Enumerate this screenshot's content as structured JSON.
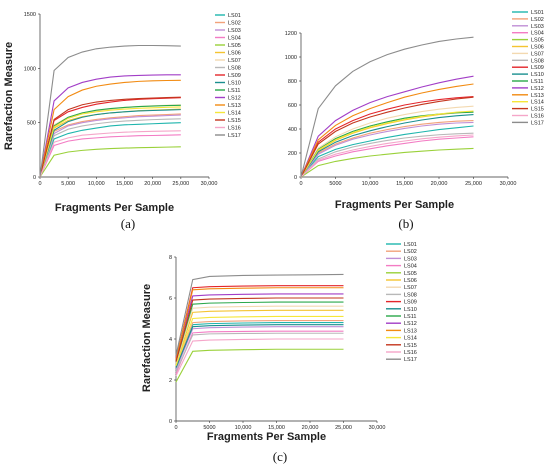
{
  "series_colors": {
    "LS01": "#1fb5ad",
    "LS02": "#f2a27a",
    "LS03": "#c08fd6",
    "LS04": "#f37cc4",
    "LS05": "#9ad13a",
    "LS06": "#f4c431",
    "LS07": "#f3d9b0",
    "LS08": "#b8b8b8",
    "LS09": "#e3262b",
    "LS10": "#1a8f8f",
    "LS11": "#2aa84a",
    "LS12": "#a23ec7",
    "LS13": "#f28b12",
    "LS14": "#f5e63a",
    "LS15": "#c4361e",
    "LS16": "#f5a6c9",
    "LS17": "#8c8c8c"
  },
  "chart_data": [
    {
      "id": "a",
      "type": "line",
      "panel_label": "(a)",
      "xlabel": "Fragments Per Sample",
      "ylabel": "Rarefaction Measure",
      "xlim": [
        0,
        30000
      ],
      "ylim": [
        0,
        1500
      ],
      "x_ticks": [
        0,
        5000,
        10000,
        15000,
        20000,
        25000,
        30000
      ],
      "x_tick_labels": [
        "0",
        "5,000",
        "10,000",
        "15,000",
        "20,000",
        "25,000",
        "30,000"
      ],
      "y_ticks": [
        0,
        500,
        1000,
        1500
      ],
      "y_tick_labels": [
        "0",
        "500",
        "1000",
        "1500"
      ],
      "legend": [
        "LS01",
        "LS02",
        "LS03",
        "LS04",
        "LS05",
        "LS06",
        "LS07",
        "LS08",
        "LS09",
        "LS10",
        "LS11",
        "LS12",
        "LS13",
        "LS14",
        "LS15",
        "LS16",
        "LS17"
      ],
      "x": [
        0,
        2500,
        5000,
        7500,
        10000,
        12500,
        15000,
        17500,
        20000,
        22500,
        25000
      ],
      "series": [
        {
          "name": "LS01",
          "values": [
            0,
            350,
            400,
            430,
            450,
            470,
            480,
            485,
            490,
            495,
            500
          ]
        },
        {
          "name": "LS02",
          "values": [
            0,
            420,
            480,
            510,
            530,
            545,
            555,
            565,
            570,
            575,
            580
          ]
        },
        {
          "name": "LS03",
          "values": [
            0,
            400,
            470,
            500,
            520,
            535,
            545,
            555,
            560,
            565,
            570
          ]
        },
        {
          "name": "LS04",
          "values": [
            0,
            290,
            330,
            350,
            360,
            370,
            375,
            380,
            382,
            385,
            388
          ]
        },
        {
          "name": "LS05",
          "values": [
            0,
            200,
            230,
            245,
            255,
            262,
            266,
            270,
            272,
            275,
            278
          ]
        },
        {
          "name": "LS06",
          "values": [
            0,
            450,
            520,
            555,
            575,
            590,
            600,
            610,
            615,
            620,
            625
          ]
        },
        {
          "name": "LS07",
          "values": [
            0,
            480,
            550,
            590,
            610,
            625,
            640,
            648,
            655,
            660,
            665
          ]
        },
        {
          "name": "LS08",
          "values": [
            0,
            380,
            440,
            470,
            490,
            505,
            515,
            522,
            528,
            532,
            535
          ]
        },
        {
          "name": "LS09",
          "values": [
            0,
            520,
            600,
            640,
            670,
            690,
            705,
            715,
            720,
            725,
            730
          ]
        },
        {
          "name": "LS10",
          "values": [
            0,
            430,
            510,
            550,
            575,
            590,
            600,
            608,
            612,
            616,
            620
          ]
        },
        {
          "name": "LS11",
          "values": [
            0,
            470,
            550,
            590,
            615,
            630,
            640,
            648,
            653,
            657,
            660
          ]
        },
        {
          "name": "LS12",
          "values": [
            0,
            700,
            820,
            870,
            900,
            920,
            930,
            935,
            938,
            940,
            940
          ]
        },
        {
          "name": "LS13",
          "values": [
            0,
            620,
            740,
            800,
            835,
            855,
            870,
            880,
            885,
            888,
            890
          ]
        },
        {
          "name": "LS14",
          "values": [
            0,
            460,
            540,
            580,
            600,
            615,
            625,
            632,
            637,
            641,
            645
          ]
        },
        {
          "name": "LS15",
          "values": [
            0,
            530,
            620,
            665,
            690,
            705,
            715,
            722,
            727,
            731,
            735
          ]
        },
        {
          "name": "LS16",
          "values": [
            0,
            320,
            360,
            385,
            395,
            405,
            412,
            417,
            420,
            423,
            425
          ]
        },
        {
          "name": "LS17",
          "values": [
            0,
            980,
            1100,
            1150,
            1180,
            1195,
            1205,
            1210,
            1210,
            1208,
            1205
          ]
        }
      ]
    },
    {
      "id": "b",
      "type": "line",
      "panel_label": "(b)",
      "xlabel": "Fragments Per Sample",
      "ylabel": "",
      "xlim": [
        0,
        30000
      ],
      "ylim": [
        0,
        1200
      ],
      "x_ticks": [
        0,
        5000,
        10000,
        15000,
        20000,
        25000,
        30000
      ],
      "x_tick_labels": [
        "0",
        "5000",
        "10,000",
        "15,000",
        "20,000",
        "25,000",
        "30,000"
      ],
      "y_ticks": [
        0,
        200,
        400,
        600,
        800,
        1000,
        1200
      ],
      "y_tick_labels": [
        "0",
        "200",
        "400",
        "600",
        "800",
        "1000",
        "1200"
      ],
      "legend": [
        "LS01",
        "LS02",
        "LS03",
        "LS04",
        "LS05",
        "LS06",
        "LS07",
        "LS08",
        "LS09",
        "LS10",
        "LS11",
        "LS12",
        "LS13",
        "LS14",
        "LS15",
        "LS16",
        "LS17"
      ],
      "x": [
        0,
        2500,
        5000,
        7500,
        10000,
        12500,
        15000,
        17500,
        20000,
        22500,
        25000
      ],
      "series": [
        {
          "name": "LS01",
          "values": [
            0,
            170,
            230,
            270,
            300,
            330,
            355,
            375,
            395,
            410,
            425
          ]
        },
        {
          "name": "LS02",
          "values": [
            0,
            200,
            275,
            325,
            365,
            395,
            420,
            440,
            455,
            465,
            470
          ]
        },
        {
          "name": "LS03",
          "values": [
            0,
            190,
            265,
            315,
            350,
            380,
            405,
            425,
            440,
            450,
            455
          ]
        },
        {
          "name": "LS04",
          "values": [
            0,
            130,
            175,
            210,
            235,
            260,
            280,
            300,
            315,
            325,
            335
          ]
        },
        {
          "name": "LS05",
          "values": [
            0,
            95,
            130,
            155,
            175,
            190,
            205,
            215,
            225,
            232,
            238
          ]
        },
        {
          "name": "LS06",
          "values": [
            0,
            220,
            305,
            365,
            410,
            445,
            475,
            500,
            520,
            535,
            545
          ]
        },
        {
          "name": "LS07",
          "values": [
            0,
            240,
            335,
            400,
            450,
            490,
            520,
            545,
            565,
            580,
            590
          ]
        },
        {
          "name": "LS08",
          "values": [
            0,
            150,
            210,
            250,
            280,
            305,
            325,
            340,
            352,
            360,
            365
          ]
        },
        {
          "name": "LS09",
          "values": [
            0,
            290,
            400,
            470,
            525,
            565,
            600,
            625,
            645,
            660,
            670
          ]
        },
        {
          "name": "LS10",
          "values": [
            0,
            210,
            290,
            345,
            385,
            420,
            450,
            475,
            495,
            510,
            520
          ]
        },
        {
          "name": "LS11",
          "values": [
            0,
            230,
            320,
            380,
            425,
            460,
            490,
            510,
            525,
            535,
            540
          ]
        },
        {
          "name": "LS12",
          "values": [
            0,
            340,
            470,
            555,
            620,
            670,
            710,
            750,
            785,
            815,
            840
          ]
        },
        {
          "name": "LS13",
          "values": [
            0,
            310,
            430,
            510,
            570,
            620,
            665,
            700,
            730,
            755,
            775
          ]
        },
        {
          "name": "LS14",
          "values": [
            0,
            225,
            310,
            370,
            415,
            450,
            480,
            505,
            525,
            540,
            550
          ]
        },
        {
          "name": "LS15",
          "values": [
            0,
            275,
            380,
            450,
            500,
            540,
            575,
            605,
            630,
            650,
            665
          ]
        },
        {
          "name": "LS16",
          "values": [
            0,
            140,
            190,
            225,
            255,
            280,
            300,
            318,
            332,
            342,
            350
          ]
        },
        {
          "name": "LS17",
          "values": [
            0,
            570,
            760,
            880,
            960,
            1020,
            1065,
            1100,
            1130,
            1150,
            1165
          ]
        }
      ]
    },
    {
      "id": "c",
      "type": "line",
      "panel_label": "(c)",
      "xlabel": "Fragments Per Sample",
      "ylabel": "Rarefaction Measure",
      "xlim": [
        0,
        30000
      ],
      "ylim": [
        0,
        8
      ],
      "x_ticks": [
        0,
        5000,
        10000,
        15000,
        20000,
        25000,
        30000
      ],
      "x_tick_labels": [
        "0",
        "5000",
        "10,000",
        "15,000",
        "20,000",
        "25,000",
        "30,000"
      ],
      "y_ticks": [
        0,
        2,
        4,
        6,
        8
      ],
      "y_tick_labels": [
        "0",
        "2",
        "4",
        "6",
        "8"
      ],
      "legend": [
        "LS01",
        "LS02",
        "LS03",
        "LS04",
        "LS05",
        "LS06",
        "LS07",
        "LS08",
        "LS09",
        "LS10",
        "LS11",
        "LS12",
        "LS13",
        "LS14",
        "LS15",
        "LS16",
        "LS17"
      ],
      "x": [
        0,
        2500,
        5000,
        10000,
        15000,
        20000,
        25000
      ],
      "series": [
        {
          "name": "LS01",
          "values": [
            2.6,
            4.7,
            4.75,
            4.78,
            4.8,
            4.8,
            4.8
          ]
        },
        {
          "name": "LS02",
          "values": [
            2.6,
            4.8,
            4.85,
            4.88,
            4.9,
            4.9,
            4.9
          ]
        },
        {
          "name": "LS03",
          "values": [
            2.5,
            4.5,
            4.55,
            4.58,
            4.6,
            4.6,
            4.6
          ]
        },
        {
          "name": "LS04",
          "values": [
            2.3,
            4.3,
            4.35,
            4.37,
            4.38,
            4.38,
            4.38
          ]
        },
        {
          "name": "LS05",
          "values": [
            1.9,
            3.4,
            3.45,
            3.48,
            3.5,
            3.5,
            3.5
          ]
        },
        {
          "name": "LS06",
          "values": [
            2.7,
            5.3,
            5.35,
            5.38,
            5.4,
            5.4,
            5.4
          ]
        },
        {
          "name": "LS07",
          "values": [
            2.8,
            5.5,
            5.55,
            5.58,
            5.6,
            5.6,
            5.6
          ]
        },
        {
          "name": "LS08",
          "values": [
            2.4,
            4.2,
            4.25,
            4.27,
            4.28,
            4.28,
            4.28
          ]
        },
        {
          "name": "LS09",
          "values": [
            3.0,
            6.5,
            6.55,
            6.58,
            6.6,
            6.6,
            6.6
          ]
        },
        {
          "name": "LS10",
          "values": [
            2.6,
            4.6,
            4.65,
            4.68,
            4.7,
            4.7,
            4.7
          ]
        },
        {
          "name": "LS11",
          "values": [
            2.9,
            5.7,
            5.75,
            5.78,
            5.8,
            5.8,
            5.8
          ]
        },
        {
          "name": "LS12",
          "values": [
            3.1,
            6.1,
            6.15,
            6.18,
            6.2,
            6.2,
            6.2
          ]
        },
        {
          "name": "LS13",
          "values": [
            3.0,
            6.4,
            6.45,
            6.48,
            6.5,
            6.5,
            6.5
          ]
        },
        {
          "name": "LS14",
          "values": [
            2.7,
            5.0,
            5.05,
            5.08,
            5.1,
            5.1,
            5.1
          ]
        },
        {
          "name": "LS15",
          "values": [
            2.9,
            5.9,
            5.95,
            5.98,
            6.0,
            6.0,
            6.0
          ]
        },
        {
          "name": "LS16",
          "values": [
            2.2,
            3.9,
            3.95,
            3.98,
            4.0,
            4.0,
            4.0
          ]
        },
        {
          "name": "LS17",
          "values": [
            3.2,
            6.9,
            7.05,
            7.1,
            7.12,
            7.13,
            7.15
          ]
        }
      ]
    }
  ]
}
